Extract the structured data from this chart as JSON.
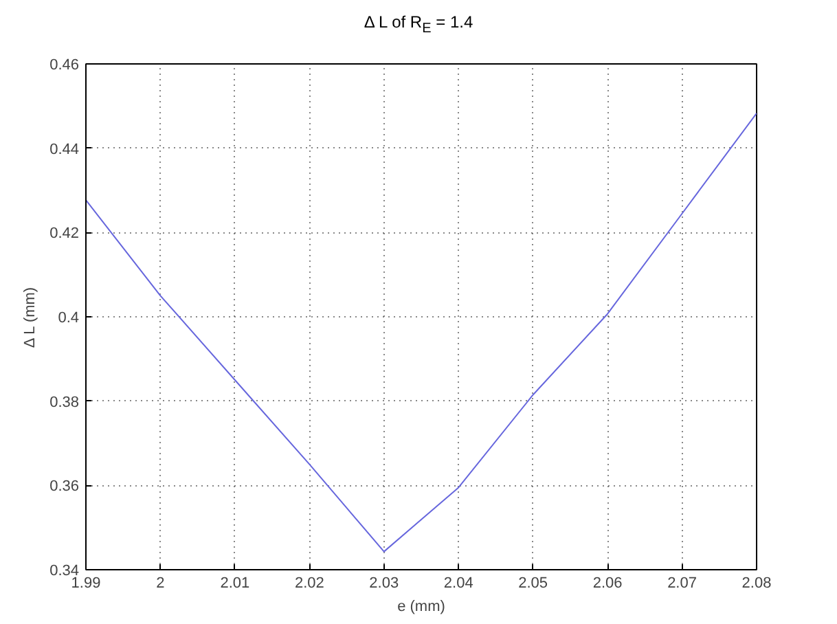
{
  "chart_data": {
    "type": "line",
    "title": "Δ L of R$_{E}$ = 1.4",
    "xlabel": "e (mm)",
    "ylabel": "Δ L (mm)",
    "x": [
      1.99,
      2.0,
      2.01,
      2.02,
      2.03,
      2.04,
      2.05,
      2.06,
      2.07,
      2.08
    ],
    "series": [
      {
        "color": "#6666dd",
        "values": [
          0.4277,
          0.405,
          0.385,
          0.365,
          0.3443,
          0.3595,
          0.3815,
          0.4007,
          0.4245,
          0.4483
        ]
      }
    ],
    "xlim": [
      1.99,
      2.08
    ],
    "ylim": [
      0.34,
      0.46
    ],
    "xticks": [
      1.99,
      2,
      2.01,
      2.02,
      2.03,
      2.04,
      2.05,
      2.06,
      2.07,
      2.08
    ],
    "yticks": [
      0.34,
      0.36,
      0.38,
      0.4,
      0.42,
      0.44,
      0.46
    ],
    "grid": true,
    "line_style": "solid"
  }
}
